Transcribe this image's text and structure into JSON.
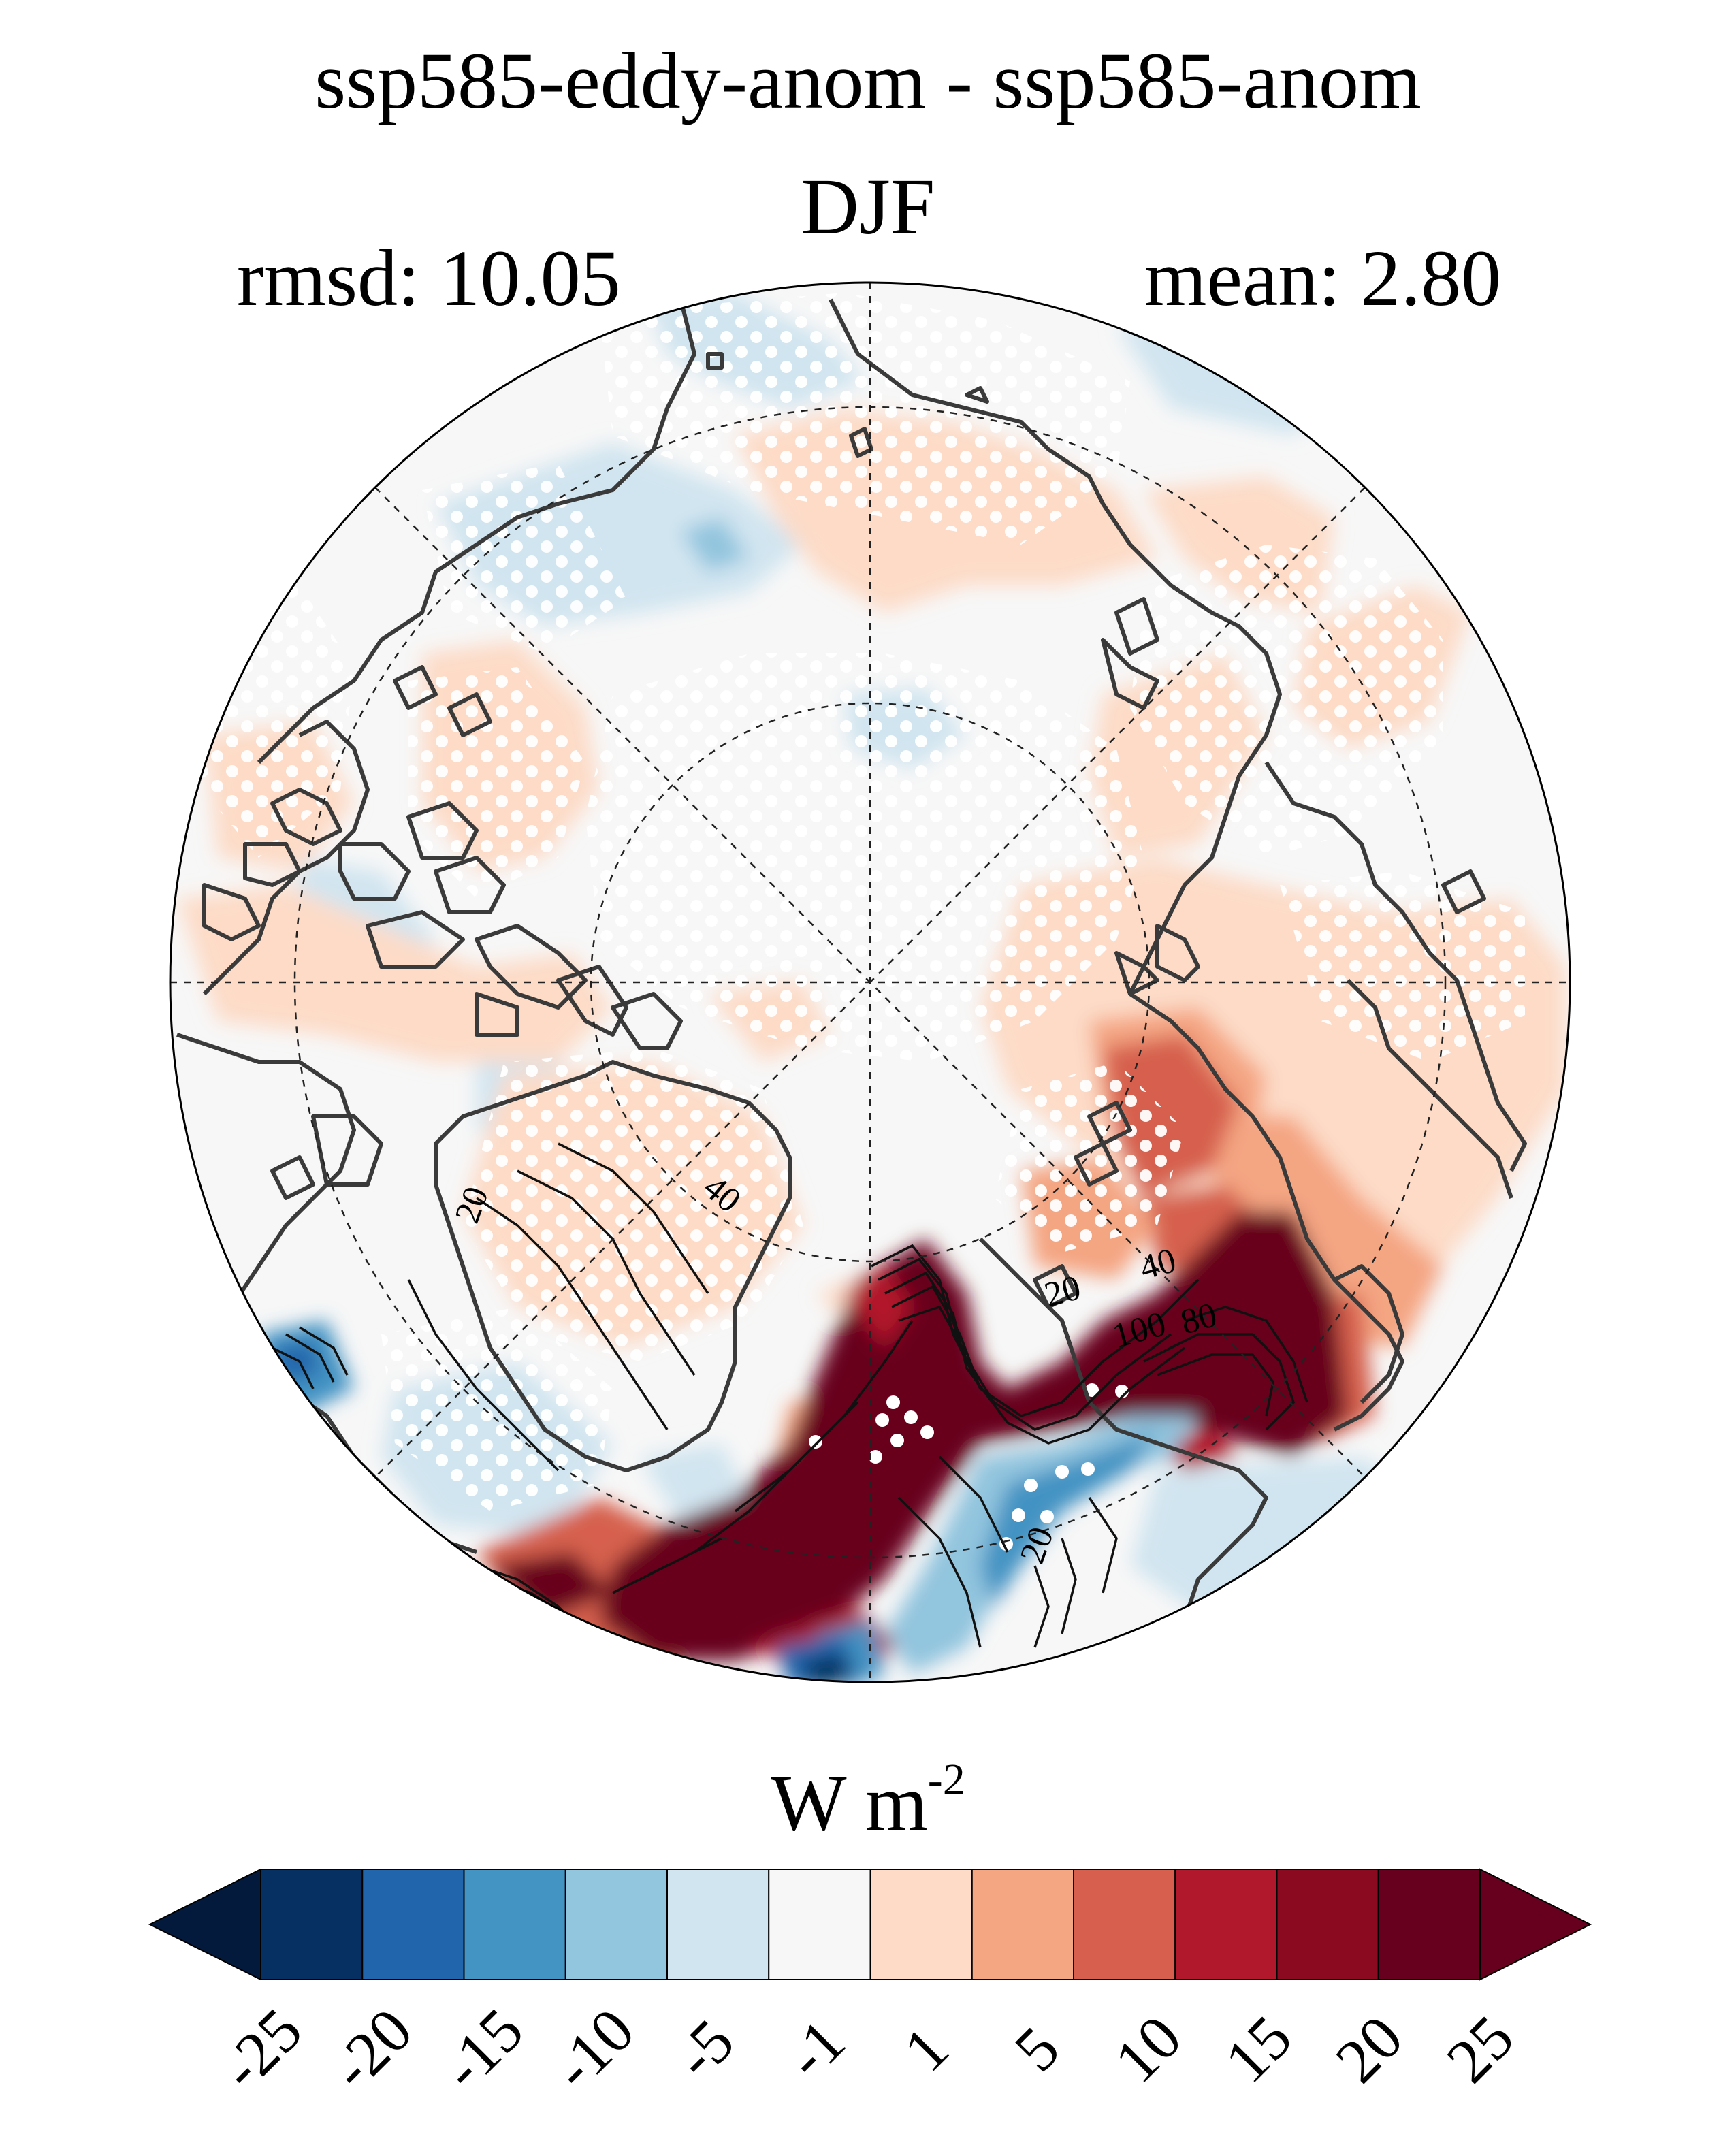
{
  "title": "ssp585-eddy-anom - ssp585-anom",
  "season": "DJF",
  "stats": {
    "rmsd": "rmsd: 10.05",
    "mean": "mean: 2.80"
  },
  "units": {
    "base": "W m",
    "exponent": "-2"
  },
  "contour_labels": [
    "20",
    "40",
    "20",
    "40",
    "100",
    "80",
    "20"
  ],
  "colorbar": {
    "ticks": [
      "-25",
      "-20",
      "-15",
      "-10",
      "-5",
      "-1",
      "1",
      "5",
      "10",
      "15",
      "20",
      "25"
    ],
    "colors": [
      "#053061",
      "#2166ac",
      "#4393c3",
      "#92c5de",
      "#d1e5f0",
      "#f7f7f7",
      "#fddbc7",
      "#f4a582",
      "#d6604d",
      "#b2182b",
      "#8b0a1f",
      "#67001f"
    ],
    "under_color": "#031a3d",
    "over_color": "#67001f"
  },
  "projection": "north-polar-stereographic",
  "stippling": "white dots",
  "grid": "dashed lat/lon"
}
